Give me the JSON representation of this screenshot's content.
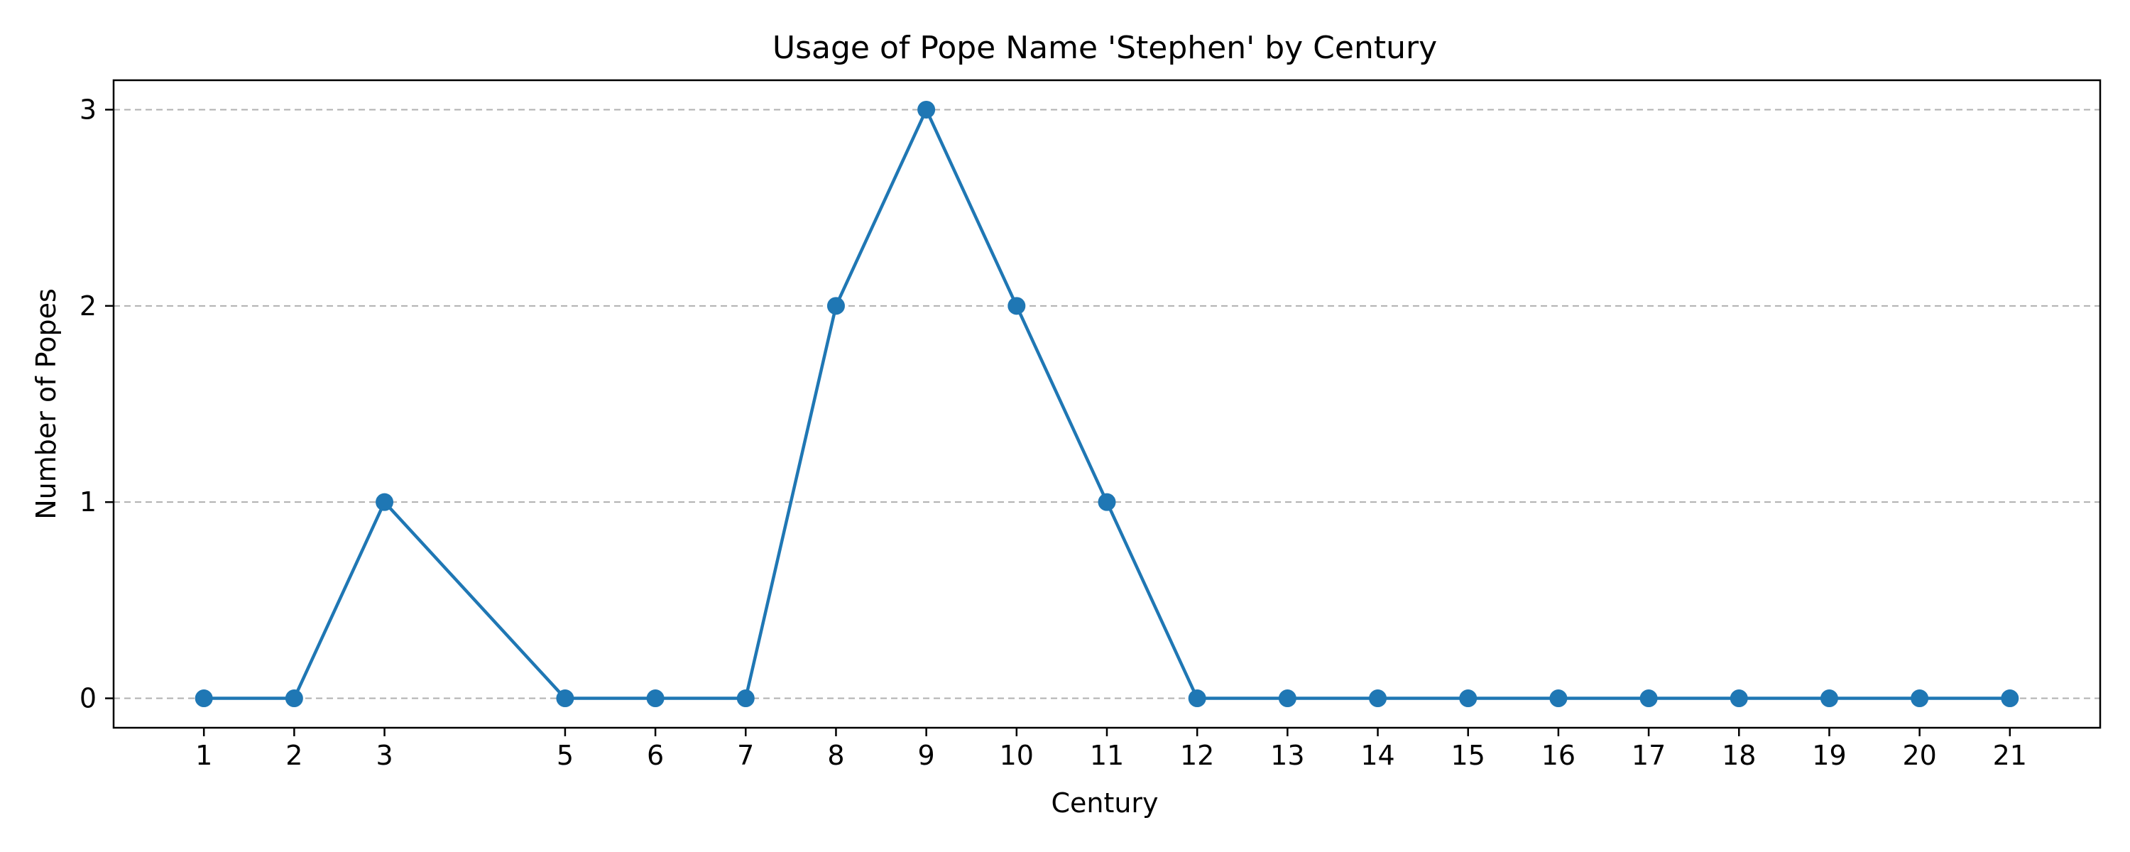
{
  "chart_data": {
    "type": "line",
    "title": "Usage of Pope Name 'Stephen' by Century",
    "xlabel": "Century",
    "ylabel": "Number of Popes",
    "x": [
      1,
      2,
      3,
      5,
      6,
      7,
      8,
      9,
      10,
      11,
      12,
      13,
      14,
      15,
      16,
      17,
      18,
      19,
      20,
      21
    ],
    "xticks": [
      "1",
      "2",
      "3",
      "5",
      "6",
      "7",
      "8",
      "9",
      "10",
      "11",
      "12",
      "13",
      "14",
      "15",
      "16",
      "17",
      "18",
      "19",
      "20",
      "21"
    ],
    "yticks": [
      "0",
      "1",
      "2",
      "3"
    ],
    "ylim": [
      -0.15,
      3.15
    ],
    "xlim": [
      0,
      22
    ],
    "series": [
      {
        "values": [
          0,
          0,
          1,
          0,
          0,
          0,
          2,
          3,
          2,
          1,
          0,
          0,
          0,
          0,
          0,
          0,
          0,
          0,
          0,
          0
        ],
        "color": "#1f77b4",
        "marker": "circle"
      }
    ],
    "grid": "y-dashed",
    "legend": "none"
  }
}
